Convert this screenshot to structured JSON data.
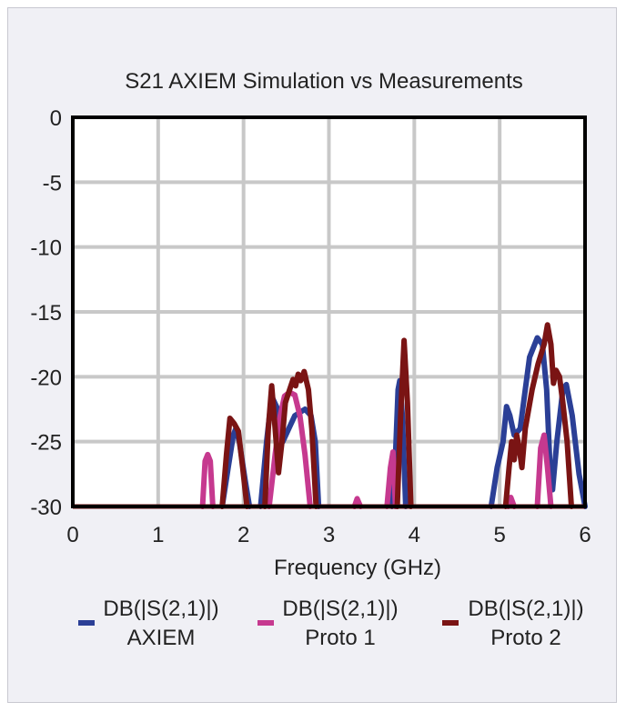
{
  "chart_data": {
    "type": "line",
    "title": "S21 AXIEM Simulation vs Measurements",
    "xlabel": "Frequency (GHz)",
    "ylabel": "",
    "xlim": [
      0,
      6
    ],
    "ylim": [
      -30,
      0
    ],
    "x_ticks": [
      "0",
      "1",
      "2",
      "3",
      "4",
      "5",
      "6"
    ],
    "y_ticks": [
      "0",
      "-5",
      "-10",
      "-15",
      "-20",
      "-25",
      "-30"
    ],
    "grid": true,
    "legend_position": "bottom",
    "series": [
      {
        "name": "DB(|S(2,1)|) AXIEM",
        "legend_line1": "DB(|S(2,1)|)",
        "legend_line2": "AXIEM",
        "color": "#2b3f96",
        "segments": [
          [
            [
              1.75,
              -30
            ],
            [
              1.82,
              -27
            ],
            [
              1.88,
              -24.5
            ],
            [
              1.91,
              -24
            ],
            [
              1.95,
              -25
            ],
            [
              2.02,
              -28
            ],
            [
              2.07,
              -30
            ]
          ],
          [
            [
              2.2,
              -30
            ],
            [
              2.27,
              -25
            ],
            [
              2.33,
              -21.5
            ],
            [
              2.4,
              -22.5
            ],
            [
              2.46,
              -25
            ],
            [
              2.53,
              -24
            ],
            [
              2.6,
              -23
            ],
            [
              2.72,
              -22.5
            ],
            [
              2.79,
              -23
            ],
            [
              2.84,
              -25
            ],
            [
              2.88,
              -30
            ]
          ],
          [
            [
              3.74,
              -30
            ],
            [
              3.78,
              -26
            ],
            [
              3.81,
              -21
            ],
            [
              3.83,
              -20.3
            ],
            [
              3.86,
              -23
            ],
            [
              3.9,
              -30
            ]
          ],
          [
            [
              4.9,
              -30
            ],
            [
              4.97,
              -27
            ],
            [
              5.04,
              -25
            ],
            [
              5.08,
              -22.3
            ],
            [
              5.12,
              -23
            ],
            [
              5.17,
              -24.5
            ],
            [
              5.24,
              -24
            ],
            [
              5.28,
              -22
            ],
            [
              5.35,
              -18.5
            ],
            [
              5.44,
              -17
            ],
            [
              5.5,
              -17.5
            ],
            [
              5.55,
              -21
            ],
            [
              5.59,
              -27
            ],
            [
              5.62,
              -28.7
            ],
            [
              5.67,
              -25
            ],
            [
              5.74,
              -21
            ],
            [
              5.78,
              -20.6
            ],
            [
              5.85,
              -23
            ],
            [
              5.93,
              -27.5
            ],
            [
              6.0,
              -30
            ]
          ]
        ]
      },
      {
        "name": "DB(|S(2,1)|) Proto 1",
        "legend_line1": "DB(|S(2,1)|)",
        "legend_line2": "Proto 1",
        "color": "#c6398f",
        "segments": [
          [
            [
              1.52,
              -30
            ],
            [
              1.55,
              -26.5
            ],
            [
              1.58,
              -26
            ],
            [
              1.61,
              -26.5
            ],
            [
              1.64,
              -30
            ]
          ],
          [
            [
              2.3,
              -30
            ],
            [
              2.37,
              -26
            ],
            [
              2.43,
              -23
            ],
            [
              2.48,
              -21.5
            ],
            [
              2.54,
              -21.2
            ],
            [
              2.6,
              -21.4
            ],
            [
              2.66,
              -23
            ],
            [
              2.72,
              -26
            ],
            [
              2.78,
              -30
            ]
          ],
          [
            [
              3.3,
              -30
            ],
            [
              3.33,
              -29.4
            ],
            [
              3.37,
              -30
            ]
          ],
          [
            [
              3.68,
              -30
            ],
            [
              3.72,
              -27
            ],
            [
              3.75,
              -25.8
            ],
            [
              3.78,
              -30
            ]
          ],
          [
            [
              5.1,
              -30
            ],
            [
              5.13,
              -29.3
            ],
            [
              5.17,
              -30
            ]
          ],
          [
            [
              5.44,
              -30
            ],
            [
              5.48,
              -25.5
            ],
            [
              5.52,
              -24.5
            ],
            [
              5.56,
              -27
            ],
            [
              5.6,
              -30
            ]
          ]
        ]
      },
      {
        "name": "DB(|S(2,1)|) Proto 2",
        "legend_line1": "DB(|S(2,1)|)",
        "legend_line2": "Proto 2",
        "color": "#7a1414",
        "segments": [
          [
            [
              1.75,
              -30
            ],
            [
              1.8,
              -26
            ],
            [
              1.84,
              -23.2
            ],
            [
              1.89,
              -23.6
            ],
            [
              1.94,
              -24.2
            ],
            [
              1.99,
              -27
            ],
            [
              2.04,
              -30
            ]
          ],
          [
            [
              2.25,
              -30
            ],
            [
              2.29,
              -24
            ],
            [
              2.33,
              -20.7
            ],
            [
              2.37,
              -24
            ],
            [
              2.41,
              -27.4
            ],
            [
              2.45,
              -25
            ],
            [
              2.49,
              -22
            ],
            [
              2.54,
              -21
            ],
            [
              2.58,
              -20.2
            ],
            [
              2.61,
              -20.7
            ],
            [
              2.64,
              -19.8
            ],
            [
              2.67,
              -20.3
            ],
            [
              2.71,
              -19.6
            ],
            [
              2.76,
              -21
            ],
            [
              2.8,
              -24
            ],
            [
              2.85,
              -30
            ]
          ],
          [
            [
              3.8,
              -30
            ],
            [
              3.84,
              -23
            ],
            [
              3.88,
              -17.2
            ],
            [
              3.92,
              -22
            ],
            [
              3.96,
              -30
            ]
          ],
          [
            [
              5.07,
              -30
            ],
            [
              5.11,
              -27
            ],
            [
              5.14,
              -25
            ],
            [
              5.17,
              -26.4
            ],
            [
              5.2,
              -24.5
            ],
            [
              5.23,
              -25.5
            ],
            [
              5.26,
              -27
            ],
            [
              5.3,
              -24
            ],
            [
              5.38,
              -21
            ],
            [
              5.45,
              -19
            ],
            [
              5.52,
              -17.5
            ],
            [
              5.56,
              -16
            ],
            [
              5.6,
              -17.5
            ],
            [
              5.63,
              -20.5
            ],
            [
              5.66,
              -19.5
            ],
            [
              5.7,
              -20
            ],
            [
              5.74,
              -22
            ],
            [
              5.79,
              -25
            ],
            [
              5.84,
              -30
            ]
          ]
        ]
      }
    ]
  }
}
